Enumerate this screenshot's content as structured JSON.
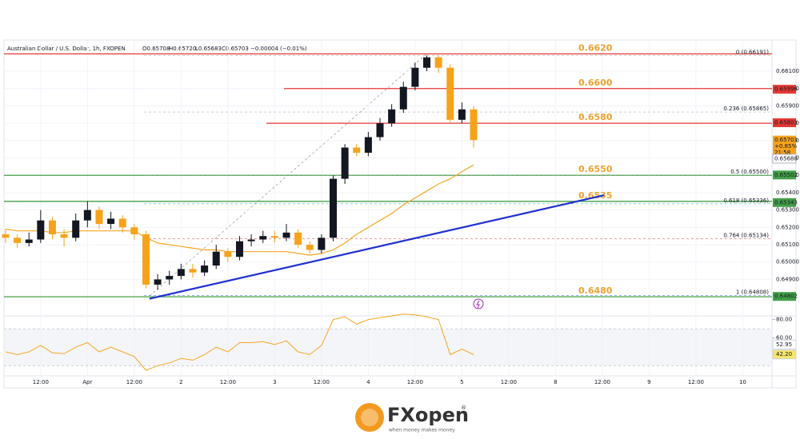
{
  "chart_data": {
    "type": "candlestick",
    "symbol": "Australian Dollar / U.S. Dollar, 1h, FXOPEN",
    "ohlc_text": [
      "O0.65708",
      "H0.65720",
      "L0.65683",
      "C0.65703",
      "−0.00004 (−0.01%)"
    ],
    "candles": {
      "x": [
        3,
        6,
        9,
        12,
        15,
        18,
        21,
        24,
        27,
        30,
        33,
        36,
        39,
        42,
        45,
        48,
        51,
        54,
        57,
        60,
        63,
        66,
        69,
        72,
        75,
        78,
        81,
        84,
        87,
        90,
        93,
        96,
        99,
        102,
        105,
        108,
        111,
        114,
        117,
        120,
        123
      ],
      "open": [
        0.6516,
        0.6514,
        0.6511,
        0.6513,
        0.6524,
        0.6516,
        0.6514,
        0.6524,
        0.653,
        0.6522,
        0.6525,
        0.652,
        0.6516,
        0.6487,
        0.649,
        0.6492,
        0.6496,
        0.6494,
        0.6498,
        0.6506,
        0.6503,
        0.6512,
        0.6513,
        0.6515,
        0.6514,
        0.6517,
        0.651,
        0.6507,
        0.6514,
        0.6548,
        0.6566,
        0.6563,
        0.6572,
        0.658,
        0.6588,
        0.6601,
        0.6612,
        0.6618,
        0.6612,
        0.6582,
        0.6588
      ],
      "high": [
        0.6519,
        0.6516,
        0.6517,
        0.653,
        0.6526,
        0.6519,
        0.6528,
        0.6535,
        0.6532,
        0.6529,
        0.6527,
        0.6522,
        0.6518,
        0.6493,
        0.6495,
        0.6499,
        0.6499,
        0.6501,
        0.651,
        0.6508,
        0.6515,
        0.6516,
        0.6518,
        0.6518,
        0.6522,
        0.6519,
        0.6512,
        0.6516,
        0.655,
        0.6568,
        0.6568,
        0.6575,
        0.6583,
        0.6591,
        0.6604,
        0.6615,
        0.66191,
        0.6619,
        0.6614,
        0.6592,
        0.659
      ],
      "low": [
        0.6511,
        0.6508,
        0.6509,
        0.6511,
        0.6513,
        0.6509,
        0.6512,
        0.652,
        0.6519,
        0.6519,
        0.6517,
        0.6513,
        0.6485,
        0.6484,
        0.6487,
        0.649,
        0.6491,
        0.6492,
        0.6496,
        0.65,
        0.6501,
        0.6509,
        0.6511,
        0.6511,
        0.6512,
        0.6508,
        0.6505,
        0.6505,
        0.6512,
        0.6545,
        0.6561,
        0.6561,
        0.657,
        0.6578,
        0.6586,
        0.6599,
        0.661,
        0.6609,
        0.658,
        0.658,
        0.6566
      ],
      "close": [
        0.6514,
        0.6511,
        0.6513,
        0.6524,
        0.6516,
        0.6514,
        0.6524,
        0.653,
        0.6522,
        0.6525,
        0.652,
        0.6516,
        0.6487,
        0.649,
        0.6492,
        0.6496,
        0.6494,
        0.6498,
        0.6506,
        0.6503,
        0.6512,
        0.6513,
        0.6515,
        0.6514,
        0.6517,
        0.651,
        0.6507,
        0.6514,
        0.6548,
        0.6566,
        0.6563,
        0.6572,
        0.658,
        0.6588,
        0.6601,
        0.6612,
        0.6618,
        0.6612,
        0.6582,
        0.6588,
        0.65703
      ],
      "up_color": "#131722",
      "down_color": "#f7a21b"
    },
    "ma": {
      "color": "#f5a623",
      "values": [
        0.6519,
        0.6518,
        0.6518,
        0.6518,
        0.6517,
        0.6517,
        0.6518,
        0.6518,
        0.6518,
        0.6518,
        0.6518,
        0.6518,
        0.6514,
        0.6511,
        0.651,
        0.6509,
        0.6508,
        0.6507,
        0.6507,
        0.6506,
        0.6506,
        0.6506,
        0.6506,
        0.6506,
        0.6506,
        0.6505,
        0.6504,
        0.6505,
        0.6507,
        0.6511,
        0.6516,
        0.652,
        0.6524,
        0.6528,
        0.6533,
        0.6537,
        0.6541,
        0.6545,
        0.6548,
        0.6552,
        0.6556
      ]
    },
    "xlim": [
      2.6,
      199.5
    ],
    "xticks": [
      {
        "value": 12,
        "label": "12:00"
      },
      {
        "value": 24,
        "label": "Apr"
      },
      {
        "value": 36,
        "label": "12:00"
      },
      {
        "value": 48,
        "label": "2"
      },
      {
        "value": 60,
        "label": "12:00"
      },
      {
        "value": 72,
        "label": "3"
      },
      {
        "value": 84,
        "label": "12:00"
      },
      {
        "value": 96,
        "label": "4"
      },
      {
        "value": 108,
        "label": "12:00"
      },
      {
        "value": 120,
        "label": "5"
      },
      {
        "value": 132,
        "label": "12:00"
      },
      {
        "value": 144,
        "label": "8"
      },
      {
        "value": 156,
        "label": "12:00"
      },
      {
        "value": 168,
        "label": "9"
      },
      {
        "value": 180,
        "label": "12:00"
      },
      {
        "value": 192,
        "label": "10"
      }
    ],
    "ylim": [
      0.6469,
      0.6628
    ],
    "yticks": [
      {
        "value": 0.649,
        "label": "0.64900"
      },
      {
        "value": 0.65,
        "label": "0.65000"
      },
      {
        "value": 0.651,
        "label": "0.65100"
      },
      {
        "value": 0.652,
        "label": "0.65200"
      },
      {
        "value": 0.653,
        "label": "0.65300"
      },
      {
        "value": 0.654,
        "label": "0.65400"
      },
      {
        "value": 0.655,
        "label": "0.65500"
      },
      {
        "value": 0.656,
        "label": "0.65600"
      },
      {
        "value": 0.657,
        "label": "0.65700"
      },
      {
        "value": 0.658,
        "label": "0.65800"
      },
      {
        "value": 0.659,
        "label": "0.65900"
      },
      {
        "value": 0.66,
        "label": "0.66000"
      },
      {
        "value": 0.661,
        "label": "0.66100"
      }
    ],
    "grid": true,
    "levels": {
      "values": [
        0.662,
        0.66,
        0.658,
        0.655,
        0.6535,
        0.648
      ],
      "value_labels": [
        "0.6620",
        "0.6600",
        "0.6580",
        "0.6550",
        "0.6535",
        "0.6480"
      ],
      "colors": [
        "#e53935",
        "#e53935",
        "#e53935",
        "#43a047",
        "#43a047",
        "#43a047"
      ]
    },
    "fib": {
      "values": [
        0.66191,
        0.65865,
        0.655,
        0.65336,
        0.65134,
        0.64808
      ],
      "value_labels": [
        "0 (0.66191)",
        "0.236 (0.65865)",
        "0.5 (0.65500)",
        "0.618 (0.65336)",
        "0.764 (0.65134)",
        "1 (0.64808)"
      ],
      "colors": [
        "#9e9e9e",
        "#9e9e9e",
        "#9e9e9e",
        "#26a69a",
        "#e53935",
        "#2962ff"
      ]
    },
    "trendline": {
      "color": "#1e2fd0",
      "x": [
        39.9,
        156.4
      ],
      "y": [
        0.64789,
        0.65385
      ]
    },
    "price_tags": {
      "values": [
        0.65996,
        0.65803,
        0.65703,
        0.65688,
        0.65502,
        0.65343,
        0.64802
      ],
      "colors": [
        "#e53935",
        "#e53935",
        "#f7a21b",
        "#ffffff",
        "#43a047",
        "#43a047",
        "#43a047"
      ],
      "last_extra": [
        "+0.85%",
        "21:58"
      ]
    },
    "rsi": {
      "color": "#f5a623",
      "values": [
        45,
        42,
        45,
        52,
        44,
        43,
        50,
        55,
        45,
        50,
        45,
        40,
        25,
        30,
        33,
        38,
        36,
        42,
        50,
        45,
        55,
        55,
        56,
        53,
        57,
        45,
        42,
        52,
        80,
        83,
        75,
        80,
        82,
        84,
        86,
        85,
        83,
        80,
        42,
        48,
        42
      ],
      "ylim": [
        19,
        84
      ],
      "band": [
        30,
        70
      ],
      "yticks": [
        {
          "value": 80,
          "label": "80.00"
        },
        {
          "value": 60,
          "label": "60.00"
        }
      ],
      "tags": [
        52.95,
        {
          "value": 42.2,
          "label": "42.20"
        }
      ],
      "tag_colors": [
        "#ffffff",
        "#f5e56b"
      ]
    },
    "footer": {
      "brand": "FXopen",
      "tagline": "when money makes money",
      "mark": "®"
    }
  }
}
